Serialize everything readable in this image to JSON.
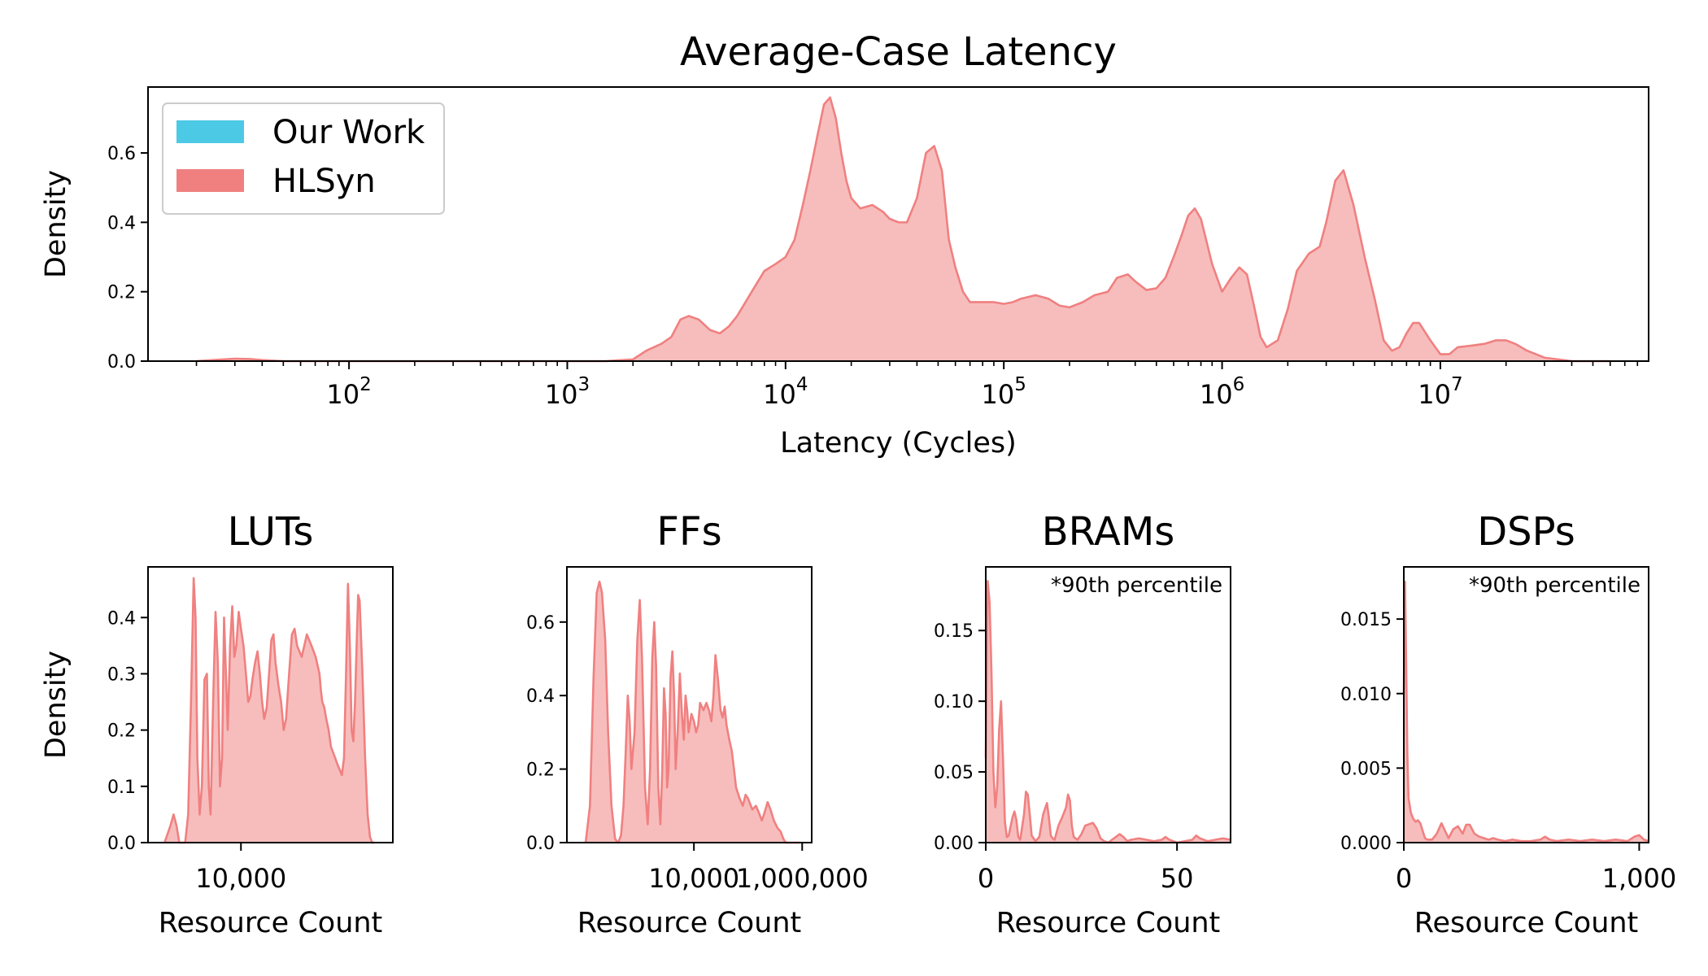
{
  "colors": {
    "our_work": "#4cc9e5",
    "hlsyn": "#f08080",
    "hlsyn_fill": "#f7bdbd",
    "axis": "#000000"
  },
  "legend": {
    "placement": "upper-left",
    "entries": [
      {
        "label": "Our Work",
        "color": "#4cc9e5"
      },
      {
        "label": "HLSyn",
        "color": "#f08080"
      }
    ]
  },
  "chart_data": [
    {
      "id": "latency",
      "type": "area",
      "title": "Average-Case Latency",
      "xlabel": "Latency (Cycles)",
      "ylabel": "Density",
      "xscale": "log",
      "xlim": [
        12,
        90000000
      ],
      "ylim": [
        0,
        0.79
      ],
      "yticks": [
        0.0,
        0.2,
        0.4,
        0.6
      ],
      "ytick_labels": [
        "0.0",
        "0.2",
        "0.4",
        "0.6"
      ],
      "xticks": [
        100,
        1000,
        10000,
        100000,
        1000000,
        10000000
      ],
      "xtick_labels": [
        {
          "base": "10",
          "exp": "2"
        },
        {
          "base": "10",
          "exp": "3"
        },
        {
          "base": "10",
          "exp": "4"
        },
        {
          "base": "10",
          "exp": "5"
        },
        {
          "base": "10",
          "exp": "6"
        },
        {
          "base": "10",
          "exp": "7"
        }
      ],
      "series": [
        {
          "name": "HLSyn",
          "x": [
            20,
            25,
            30,
            35,
            40,
            50,
            100,
            500,
            1000,
            1500,
            2000,
            2300,
            2700,
            3000,
            3300,
            3600,
            4000,
            4500,
            5000,
            5500,
            6000,
            7000,
            8000,
            9000,
            10000,
            11000,
            12000,
            13000,
            14000,
            15000,
            16000,
            17000,
            18000,
            19000,
            20000,
            22000,
            25000,
            28000,
            30000,
            33000,
            36000,
            40000,
            44000,
            48000,
            52000,
            56000,
            60000,
            65000,
            70000,
            80000,
            90000,
            100000,
            110000,
            120000,
            140000,
            160000,
            180000,
            200000,
            230000,
            260000,
            300000,
            330000,
            370000,
            400000,
            450000,
            500000,
            550000,
            600000,
            650000,
            700000,
            750000,
            800000,
            900000,
            1000000,
            1100000,
            1200000,
            1300000,
            1400000,
            1500000,
            1600000,
            1800000,
            2000000,
            2200000,
            2500000,
            2800000,
            3000000,
            3300000,
            3600000,
            4000000,
            4500000,
            5000000,
            5500000,
            6000000,
            6500000,
            7000000,
            7500000,
            8000000,
            9000000,
            10000000,
            11000000,
            12000000,
            14000000,
            16000000,
            18000000,
            20000000,
            22000000,
            25000000,
            30000000,
            40000000,
            60000000
          ],
          "y": [
            0,
            0.004,
            0.007,
            0.006,
            0.003,
            0,
            0,
            0,
            0,
            0,
            0.005,
            0.03,
            0.05,
            0.07,
            0.12,
            0.13,
            0.12,
            0.09,
            0.08,
            0.1,
            0.13,
            0.2,
            0.26,
            0.28,
            0.3,
            0.35,
            0.45,
            0.55,
            0.65,
            0.74,
            0.76,
            0.7,
            0.6,
            0.52,
            0.47,
            0.44,
            0.45,
            0.43,
            0.41,
            0.4,
            0.4,
            0.47,
            0.6,
            0.62,
            0.55,
            0.35,
            0.27,
            0.2,
            0.17,
            0.17,
            0.17,
            0.165,
            0.17,
            0.18,
            0.19,
            0.18,
            0.16,
            0.155,
            0.17,
            0.19,
            0.2,
            0.24,
            0.25,
            0.23,
            0.205,
            0.21,
            0.24,
            0.3,
            0.36,
            0.42,
            0.44,
            0.41,
            0.28,
            0.2,
            0.24,
            0.27,
            0.25,
            0.16,
            0.07,
            0.04,
            0.06,
            0.15,
            0.26,
            0.31,
            0.33,
            0.4,
            0.52,
            0.55,
            0.45,
            0.3,
            0.18,
            0.06,
            0.03,
            0.04,
            0.08,
            0.11,
            0.11,
            0.06,
            0.02,
            0.02,
            0.04,
            0.045,
            0.05,
            0.06,
            0.06,
            0.05,
            0.03,
            0.01,
            0,
            0
          ]
        }
      ]
    },
    {
      "id": "luts",
      "type": "area",
      "title": "LUTs",
      "xlabel": "Resource Count",
      "ylabel": "Density",
      "xscale": "log",
      "xlim": [
        1200,
        320000
      ],
      "ylim": [
        0,
        0.49
      ],
      "yticks": [
        0.0,
        0.1,
        0.2,
        0.3,
        0.4
      ],
      "ytick_labels": [
        "0.0",
        "0.1",
        "0.2",
        "0.3",
        "0.4"
      ],
      "xticks": [
        10000
      ],
      "xtick_labels": [
        "10,000"
      ],
      "series": [
        {
          "name": "HLSyn",
          "x": [
            1750,
            2000,
            2150,
            2300,
            2450,
            2800,
            3000,
            3200,
            3400,
            3550,
            3700,
            3900,
            4100,
            4350,
            4600,
            4800,
            5000,
            5300,
            5600,
            5900,
            6200,
            6500,
            6800,
            7100,
            7400,
            7800,
            8200,
            8600,
            9000,
            9500,
            10000,
            10600,
            11200,
            11800,
            12400,
            13000,
            13800,
            14600,
            15400,
            16200,
            17000,
            18000,
            19000,
            20000,
            21000,
            22000,
            23500,
            25000,
            26500,
            28000,
            30000,
            32000,
            34000,
            36000,
            40000,
            45000,
            50000,
            55000,
            60000,
            62000,
            64000,
            67000,
            70000,
            74000,
            78000,
            82000,
            86000,
            90000,
            95000,
            100000,
            105000,
            110000,
            115000,
            120000,
            125000,
            130000,
            135000,
            140000,
            145000,
            150000,
            160000,
            170000,
            180000,
            190000,
            200000,
            210000
          ],
          "y": [
            0,
            0.03,
            0.05,
            0.03,
            0,
            0,
            0.05,
            0.25,
            0.47,
            0.4,
            0.15,
            0.05,
            0.1,
            0.29,
            0.3,
            0.1,
            0.05,
            0.25,
            0.41,
            0.32,
            0.1,
            0.15,
            0.4,
            0.3,
            0.2,
            0.35,
            0.42,
            0.33,
            0.35,
            0.41,
            0.38,
            0.35,
            0.3,
            0.25,
            0.26,
            0.29,
            0.32,
            0.34,
            0.3,
            0.25,
            0.22,
            0.24,
            0.3,
            0.36,
            0.37,
            0.32,
            0.28,
            0.25,
            0.2,
            0.22,
            0.3,
            0.37,
            0.38,
            0.35,
            0.33,
            0.37,
            0.35,
            0.33,
            0.3,
            0.27,
            0.25,
            0.24,
            0.22,
            0.2,
            0.17,
            0.16,
            0.15,
            0.14,
            0.13,
            0.12,
            0.15,
            0.3,
            0.46,
            0.35,
            0.2,
            0.18,
            0.25,
            0.35,
            0.44,
            0.43,
            0.3,
            0.15,
            0.05,
            0.01,
            0,
            0
          ]
        }
      ]
    },
    {
      "id": "ffs",
      "type": "area",
      "title": "FFs",
      "xlabel": "Resource Count",
      "ylabel": "",
      "xscale": "log",
      "xlim": [
        45,
        1500000
      ],
      "ylim": [
        0,
        0.75
      ],
      "yticks": [
        0.0,
        0.2,
        0.4,
        0.6
      ],
      "ytick_labels": [
        "0.0",
        "0.2",
        "0.4",
        "0.6"
      ],
      "xticks": [
        10000,
        1000000
      ],
      "xtick_labels": [
        "10,000",
        "1,000,000"
      ],
      "series": [
        {
          "name": "HLSyn",
          "x": [
            100,
            120,
            140,
            160,
            180,
            200,
            230,
            260,
            300,
            350,
            400,
            450,
            500,
            550,
            600,
            650,
            700,
            800,
            900,
            1000,
            1100,
            1250,
            1400,
            1550,
            1700,
            1850,
            2000,
            2200,
            2400,
            2600,
            2800,
            3000,
            3200,
            3400,
            3700,
            4000,
            4300,
            4600,
            5000,
            5500,
            6000,
            6500,
            7000,
            7500,
            8000,
            9000,
            10000,
            11000,
            12000,
            13000,
            14000,
            15000,
            17000,
            19000,
            21000,
            23000,
            25000,
            28000,
            31000,
            34000,
            37000,
            40000,
            45000,
            50000,
            55000,
            60000,
            70000,
            80000,
            90000,
            100000,
            120000,
            140000,
            160000,
            180000,
            200000,
            230000,
            260000,
            300000,
            350000,
            400000,
            450000,
            500000,
            600000,
            700000,
            800000,
            900000
          ],
          "y": [
            0,
            0.1,
            0.45,
            0.68,
            0.71,
            0.68,
            0.55,
            0.3,
            0.1,
            0.01,
            0,
            0.02,
            0.1,
            0.25,
            0.4,
            0.33,
            0.2,
            0.3,
            0.55,
            0.66,
            0.5,
            0.15,
            0.05,
            0.2,
            0.5,
            0.6,
            0.48,
            0.15,
            0.05,
            0.2,
            0.42,
            0.35,
            0.15,
            0.2,
            0.45,
            0.52,
            0.4,
            0.2,
            0.3,
            0.46,
            0.35,
            0.28,
            0.4,
            0.36,
            0.3,
            0.35,
            0.33,
            0.3,
            0.32,
            0.38,
            0.37,
            0.36,
            0.38,
            0.36,
            0.33,
            0.4,
            0.51,
            0.44,
            0.36,
            0.34,
            0.37,
            0.32,
            0.28,
            0.25,
            0.2,
            0.15,
            0.12,
            0.1,
            0.13,
            0.12,
            0.09,
            0.1,
            0.08,
            0.06,
            0.08,
            0.11,
            0.09,
            0.06,
            0.04,
            0.03,
            0.01,
            0,
            0,
            0,
            0,
            0
          ]
        }
      ]
    },
    {
      "id": "brams",
      "type": "area",
      "title": "BRAMs",
      "note": "*90th percentile",
      "xlabel": "Resource Count",
      "ylabel": "",
      "xscale": "linear",
      "xlim": [
        0,
        64
      ],
      "ylim": [
        0,
        0.195
      ],
      "yticks": [
        0.0,
        0.05,
        0.1,
        0.15
      ],
      "ytick_labels": [
        "0.00",
        "0.05",
        "0.10",
        "0.15"
      ],
      "xticks": [
        0,
        50
      ],
      "xtick_labels": [
        "0",
        "50"
      ],
      "series": [
        {
          "name": "HLSyn",
          "x": [
            0,
            0.5,
            1,
            1.5,
            2,
            2.5,
            3,
            3.5,
            4,
            4.5,
            5,
            5.5,
            6,
            7,
            7.5,
            8,
            8.5,
            9,
            10,
            10.5,
            11,
            11.5,
            12,
            13,
            14,
            15,
            16,
            16.5,
            17,
            17.5,
            18,
            19,
            20,
            21,
            21.5,
            22,
            22.5,
            23,
            24,
            25,
            26,
            28,
            29,
            30,
            31,
            32,
            34,
            35,
            36,
            37,
            38,
            40,
            42,
            44,
            46,
            47,
            48,
            50,
            52,
            54,
            55,
            56,
            58,
            60,
            62,
            64
          ],
          "y": [
            0.06,
            0.185,
            0.17,
            0.12,
            0.05,
            0.025,
            0.04,
            0.08,
            0.1,
            0.06,
            0.015,
            0.004,
            0.005,
            0.018,
            0.022,
            0.016,
            0.004,
            0.002,
            0.02,
            0.036,
            0.034,
            0.02,
            0.005,
            0.001,
            0.004,
            0.02,
            0.028,
            0.018,
            0.005,
            0.003,
            0.002,
            0.012,
            0.018,
            0.025,
            0.034,
            0.03,
            0.012,
            0.004,
            0.002,
            0.006,
            0.012,
            0.014,
            0.01,
            0.003,
            0.001,
            0,
            0.004,
            0.006,
            0.004,
            0.001,
            0.002,
            0.003,
            0.002,
            0.001,
            0.002,
            0.004,
            0.002,
            0,
            0.001,
            0.002,
            0.005,
            0.003,
            0.001,
            0.002,
            0.003,
            0.002
          ]
        }
      ]
    },
    {
      "id": "dsps",
      "type": "area",
      "title": "DSPs",
      "note": "*90th percentile",
      "xlabel": "Resource Count",
      "ylabel": "",
      "xscale": "linear",
      "xlim": [
        0,
        1040
      ],
      "ylim": [
        0,
        0.0185
      ],
      "yticks": [
        0.0,
        0.005,
        0.01,
        0.015
      ],
      "ytick_labels": [
        "0.000",
        "0.005",
        "0.010",
        "0.015"
      ],
      "xticks": [
        0,
        1000
      ],
      "xtick_labels": [
        "0",
        "1,000"
      ],
      "series": [
        {
          "name": "HLSyn",
          "x": [
            0,
            5,
            10,
            15,
            20,
            30,
            40,
            50,
            60,
            70,
            80,
            90,
            100,
            120,
            140,
            160,
            175,
            190,
            210,
            230,
            250,
            265,
            280,
            300,
            320,
            340,
            360,
            380,
            400,
            430,
            460,
            500,
            540,
            580,
            600,
            620,
            650,
            700,
            750,
            800,
            850,
            900,
            950,
            980,
            1000,
            1020,
            1040
          ],
          "y": [
            0.01,
            0.0175,
            0.012,
            0.006,
            0.003,
            0.002,
            0.0016,
            0.0014,
            0.0015,
            0.0013,
            0.0008,
            0.0003,
            0.0002,
            0.0002,
            0.0006,
            0.0013,
            0.0008,
            0.0003,
            0.0009,
            0.0011,
            0.0006,
            0.0012,
            0.0012,
            0.0006,
            0.0004,
            0.0003,
            0.0002,
            0.0003,
            0.0002,
            0.0001,
            0.0002,
            0.0001,
            0.0001,
            0.0002,
            0.0004,
            0.0002,
            0.0001,
            0.0002,
            0.0001,
            0.0002,
            0.0001,
            0.0002,
            0.0001,
            0.0004,
            0.0005,
            0.0002,
            0.0001
          ]
        }
      ]
    }
  ]
}
